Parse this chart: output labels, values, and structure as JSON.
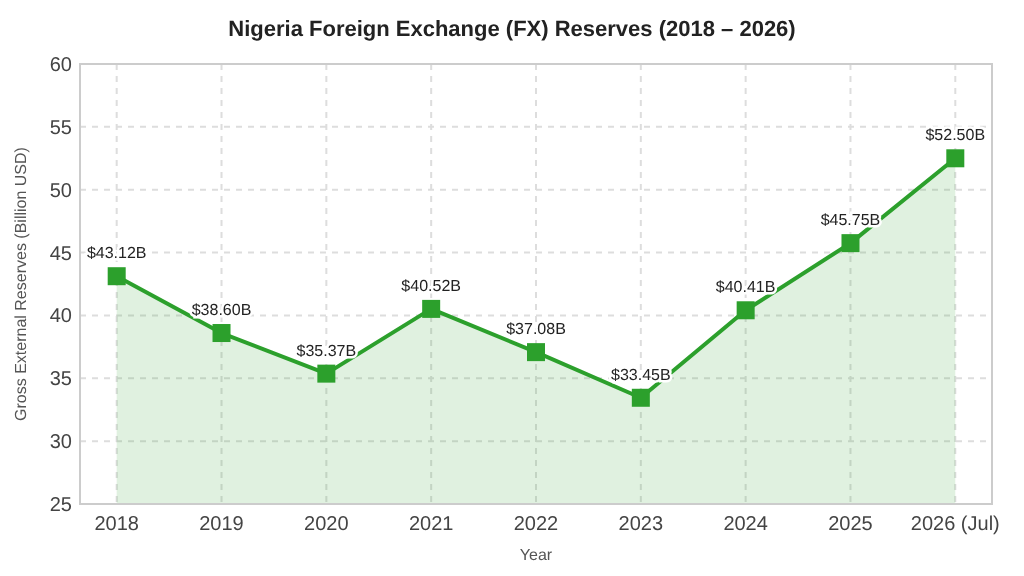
{
  "chart_data": {
    "type": "area",
    "title": "Nigeria Foreign Exchange (FX) Reserves (2018 – 2026)",
    "xlabel": "Year",
    "ylabel": "Gross External Reserves (Billion USD)",
    "categories": [
      "2018",
      "2019",
      "2020",
      "2021",
      "2022",
      "2023",
      "2024",
      "2025",
      "2026 (Jul)"
    ],
    "series": [
      {
        "color": "#2ca02c",
        "values": [
          43.12,
          38.6,
          35.37,
          40.52,
          37.08,
          33.45,
          40.41,
          45.75,
          52.5
        ],
        "value_labels": [
          "$43.12B",
          "$38.60B",
          "$35.37B",
          "$40.52B",
          "$37.08B",
          "$33.45B",
          "$40.41B",
          "$45.75B",
          "$52.50B"
        ]
      }
    ],
    "ylim": [
      25,
      60
    ],
    "yticks": [
      25,
      30,
      35,
      40,
      45,
      50,
      55,
      60
    ],
    "grid": true,
    "marker": "square",
    "line_style": "solid"
  }
}
